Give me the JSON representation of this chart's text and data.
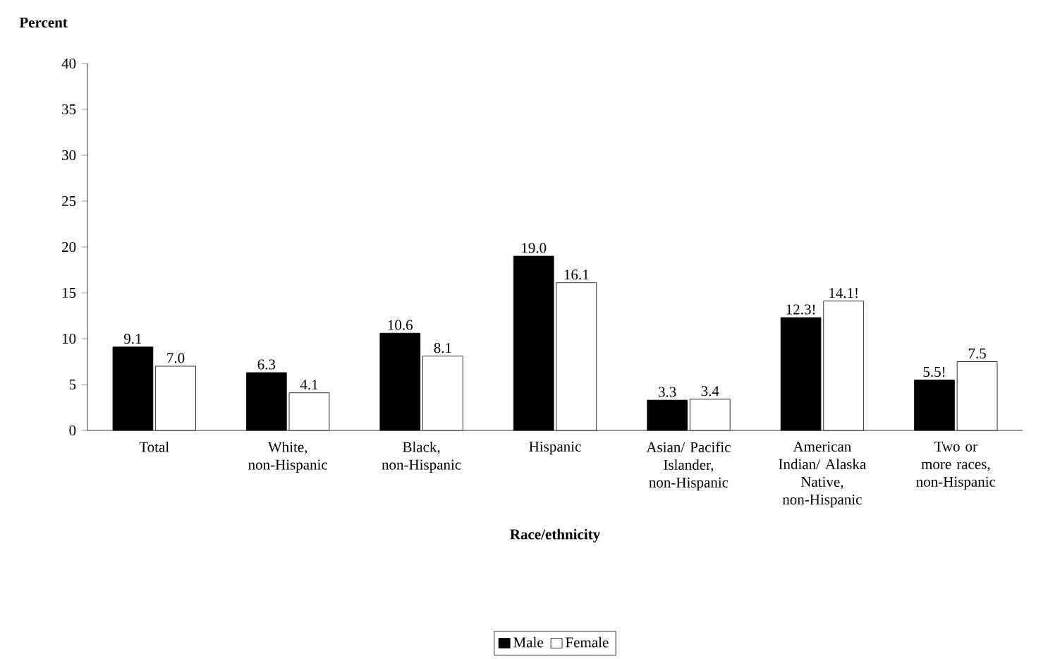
{
  "chart_data": {
    "type": "bar",
    "ylabel": "Percent",
    "xlabel": "Race/ethnicity",
    "categories": [
      "Total",
      "White, non-Hispanic",
      "Black, non-Hispanic",
      "Hispanic",
      "Asian/ Pacific Islander, non-Hispanic",
      "American Indian/ Alaska Native, non-Hispanic",
      "Two or more races, non-Hispanic"
    ],
    "series": [
      {
        "name": "Male",
        "color": "#000000",
        "values": [
          9.1,
          6.3,
          10.6,
          19.0,
          3.3,
          12.3,
          5.5
        ],
        "value_labels": [
          "9.1",
          "6.3",
          "10.6",
          "19.0",
          "3.3",
          "12.3!",
          "5.5!"
        ]
      },
      {
        "name": "Female",
        "color": "#ffffff",
        "values": [
          7.0,
          4.1,
          8.1,
          16.1,
          3.4,
          14.1,
          7.5
        ],
        "value_labels": [
          "7.0",
          "4.1",
          "8.1",
          "16.1",
          "3.4",
          "14.1!",
          "7.5"
        ]
      }
    ],
    "ylim": [
      0,
      40
    ],
    "yticks": [
      0,
      5,
      10,
      15,
      20,
      25,
      30,
      35,
      40
    ],
    "legend": "bottom"
  }
}
